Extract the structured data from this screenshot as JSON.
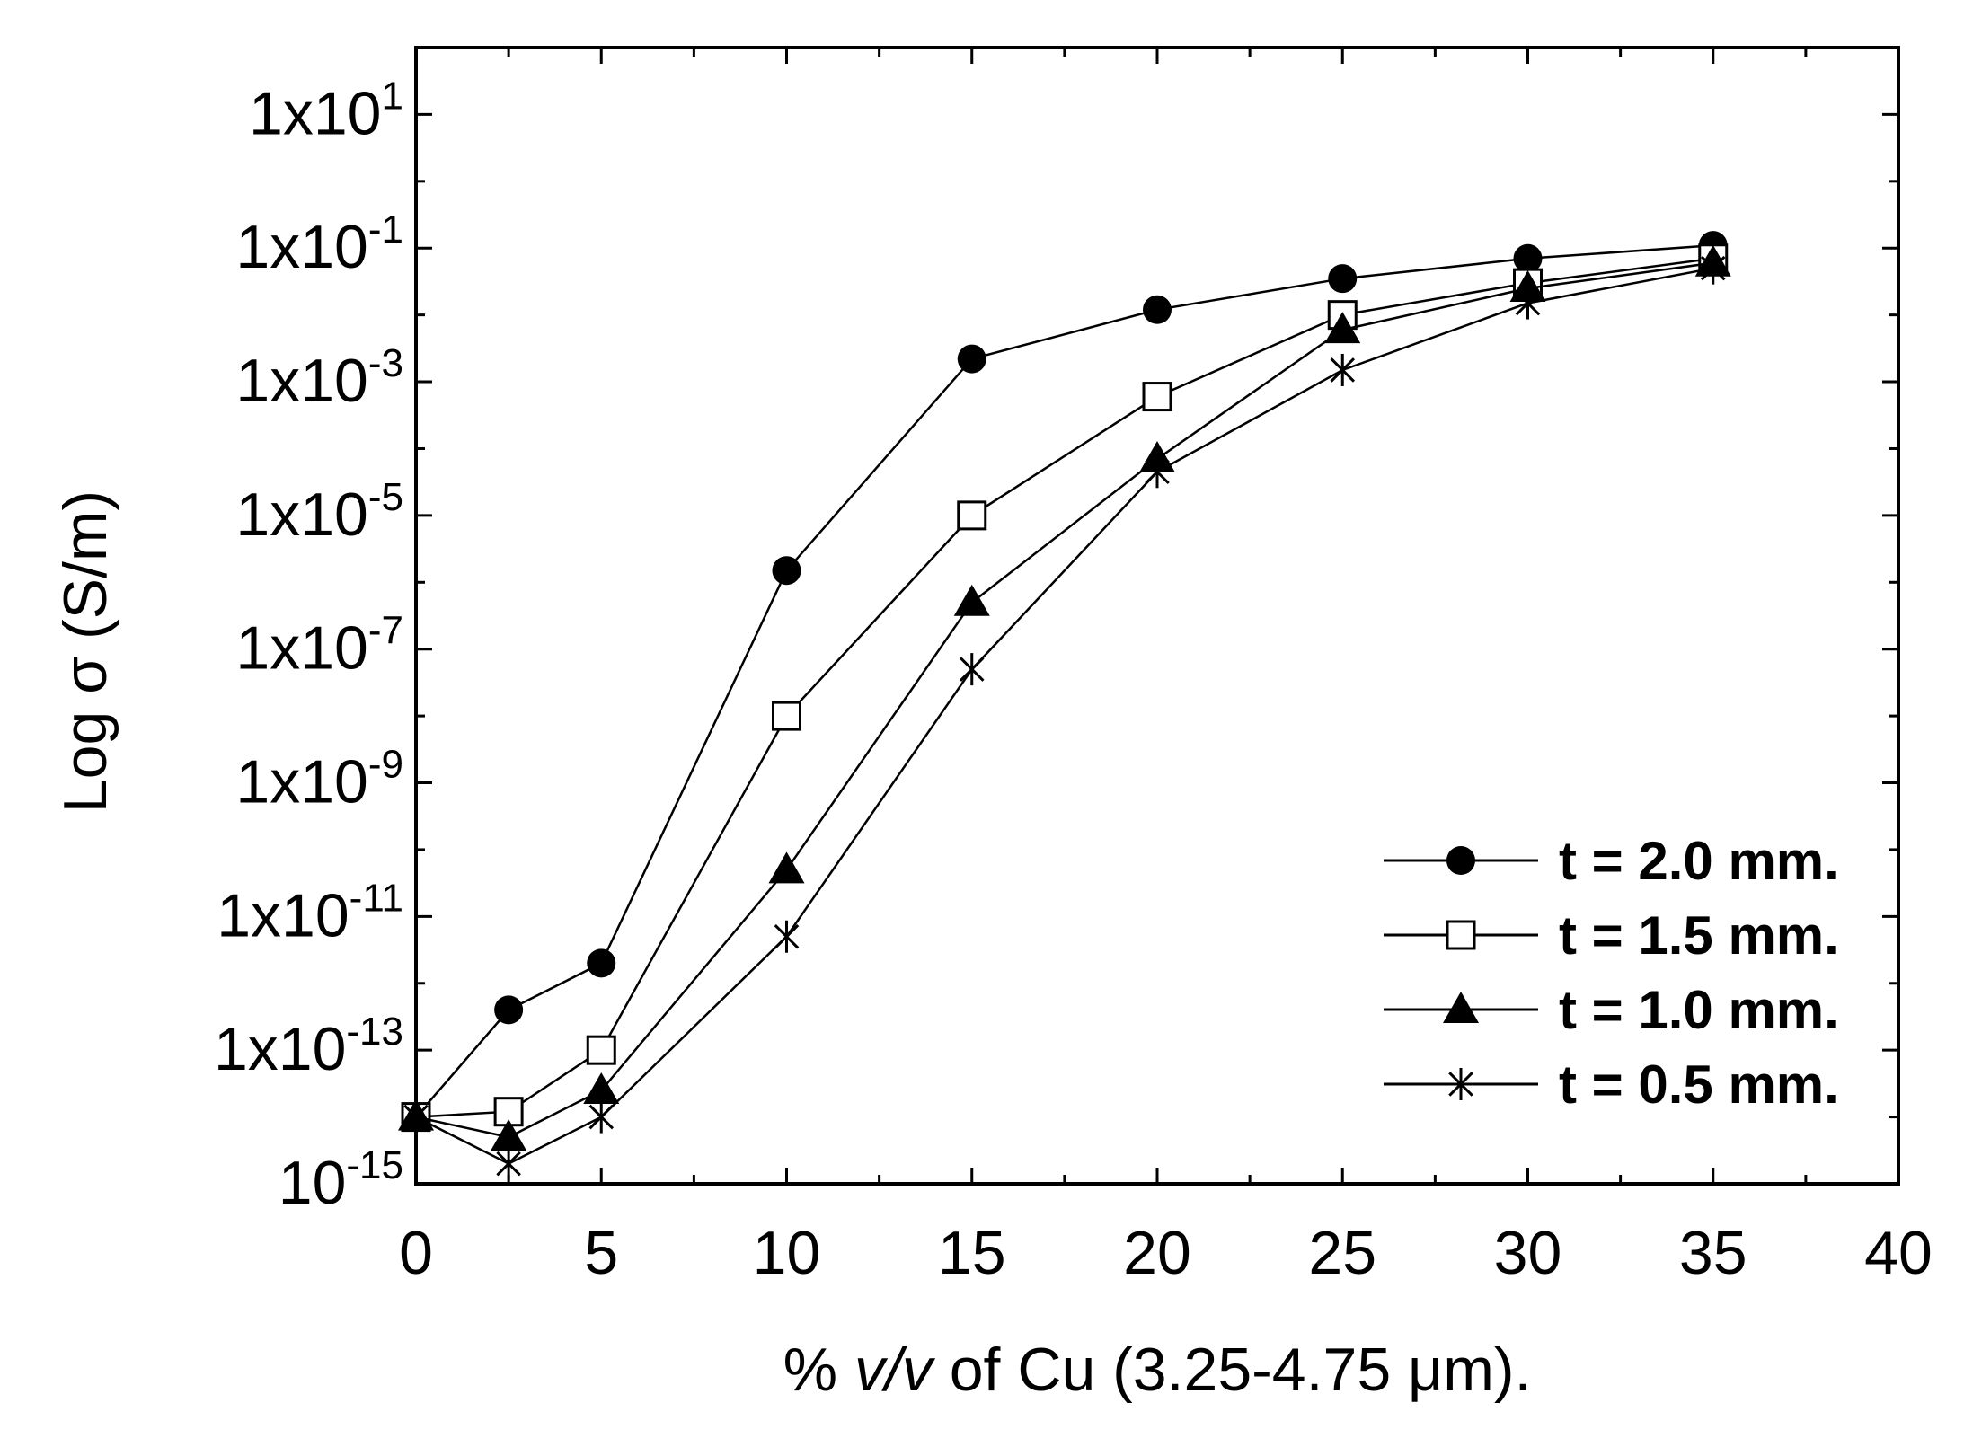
{
  "chart_data": {
    "type": "line",
    "title": "",
    "xlabel": "% v/v of Cu (3.25-4.75 μm).",
    "xlabel_parts": {
      "prefix": "% ",
      "italic": "v/v",
      "suffix": " of Cu (3.25-4.75 μm)."
    },
    "ylabel": "Log σ (S/m)",
    "xlim": [
      0,
      40
    ],
    "ylim_log10": [
      -15,
      2
    ],
    "x_ticks": [
      "0",
      "5",
      "10",
      "15",
      "20",
      "25",
      "30",
      "35",
      "40"
    ],
    "x_tick_values": [
      0,
      5,
      10,
      15,
      20,
      25,
      30,
      35,
      40
    ],
    "y_ticks": [
      {
        "exp": -15,
        "mantissa": "10",
        "sup": "-15"
      },
      {
        "exp": -13,
        "mantissa": "1x10",
        "sup": "-13"
      },
      {
        "exp": -11,
        "mantissa": "1x10",
        "sup": "-11"
      },
      {
        "exp": -9,
        "mantissa": "1x10",
        "sup": "-9"
      },
      {
        "exp": -7,
        "mantissa": "1x10",
        "sup": "-7"
      },
      {
        "exp": -5,
        "mantissa": "1x10",
        "sup": "-5"
      },
      {
        "exp": -3,
        "mantissa": "1x10",
        "sup": "-3"
      },
      {
        "exp": -1,
        "mantissa": "1x10",
        "sup": "-1"
      },
      {
        "exp": 1,
        "mantissa": "1x10",
        "sup": "1"
      }
    ],
    "x": [
      0,
      2.5,
      5,
      10,
      15,
      20,
      25,
      30,
      35
    ],
    "series": [
      {
        "name": "t = 2.0 mm.",
        "marker": "circle",
        "values": [
          1e-14,
          4e-13,
          2e-12,
          1.5e-06,
          0.0022,
          0.012,
          0.035,
          0.07,
          0.11
        ]
      },
      {
        "name": "t = 1.5 mm.",
        "marker": "open-square",
        "values": [
          1e-14,
          1.2e-14,
          1e-13,
          1e-08,
          1e-05,
          0.0006,
          0.01,
          0.03,
          0.07
        ]
      },
      {
        "name": "t = 1.0 mm.",
        "marker": "triangle",
        "values": [
          1e-14,
          5e-15,
          2.5e-14,
          5e-11,
          5e-07,
          7e-05,
          0.006,
          0.025,
          0.06
        ]
      },
      {
        "name": "t = 0.5 mm.",
        "marker": "asterisk",
        "values": [
          1e-14,
          2e-15,
          1e-14,
          5e-12,
          5e-08,
          4.5e-05,
          0.0015,
          0.015,
          0.05
        ]
      }
    ],
    "legend_position": "bottom-right",
    "grid": false
  }
}
